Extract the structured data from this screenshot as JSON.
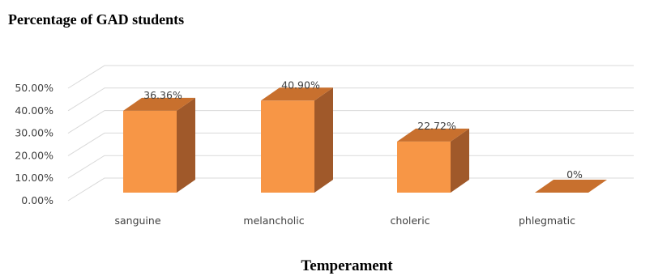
{
  "chart_data": {
    "type": "bar",
    "title": "Percentage of GAD students",
    "xlabel": "Temperament",
    "ylabel": "",
    "categories": [
      "sanguine",
      "melancholic",
      "choleric",
      "phlegmatic"
    ],
    "values": [
      36.36,
      40.9,
      22.72,
      0
    ],
    "data_labels": [
      "36.36%",
      "40.90%",
      "22.72%",
      "0%"
    ],
    "y_ticks": [
      "0.00%",
      "10.00%",
      "20.00%",
      "30.00%",
      "40.00%",
      "50.00%"
    ],
    "ylim": [
      0,
      50
    ],
    "grid": true,
    "legend": "none",
    "style": "3d-column"
  },
  "colors": {
    "bar_front": "#F79646",
    "bar_side": "#A0592A",
    "bar_top": "#C8702E",
    "grid": "#D9D9D9"
  }
}
